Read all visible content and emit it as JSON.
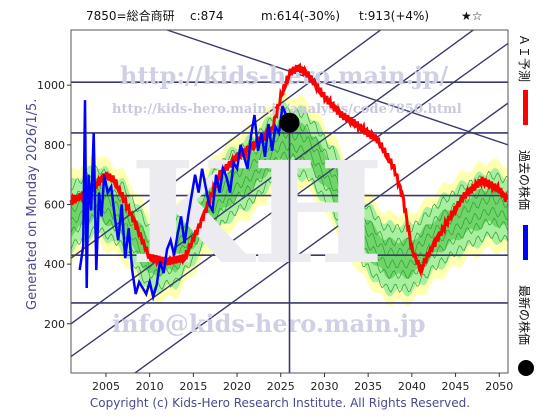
{
  "header": {
    "code_name": "7850=総合商研",
    "current": "c:874",
    "min": "m:614(-30%)",
    "target": "t:913(+4%)",
    "rating": "★☆"
  },
  "side_text": "Generated on Monday 2026/1/5.",
  "copyright": "Copyright (c) Kids-Hero Research Institute. All Rights Reserved.",
  "watermarks": {
    "url_top": "http://kids-hero.main.jp/",
    "url_sub": "http://kids-hero.main.jp/analysis/code7850.html",
    "email": "info@kids-hero.main.jp",
    "logo": "KH"
  },
  "legend": {
    "ai_forecast": "ＡＩ予測",
    "past_price": "過去の株価",
    "latest_price": "最新の株価"
  },
  "colors": {
    "ai_forecast": "#ff0000",
    "past_price": "#0000ff",
    "latest_price": "#000000",
    "band_dark": "#3fbf3f",
    "band_light": "#a8f0a0",
    "band_outer": "#ffffb0",
    "frame": "#3a3a6e"
  },
  "chart_data": {
    "type": "line",
    "x_ticks": [
      2005,
      2010,
      2015,
      2020,
      2025,
      2030,
      2035,
      2040,
      2045,
      2050
    ],
    "y_ticks": [
      200,
      400,
      600,
      800,
      1000
    ],
    "xlim": [
      2001,
      2051
    ],
    "ylim": [
      35,
      1185
    ],
    "latest_point": {
      "year": 2026,
      "value": 874
    },
    "horizontal_levels": [
      270,
      430,
      630,
      840,
      1010
    ],
    "series": [
      {
        "name": "過去の株価",
        "x": [
          2002.0,
          2002.4,
          2002.6,
          2002.8,
          2003.0,
          2003.3,
          2003.6,
          2003.9,
          2004.2,
          2004.5,
          2004.8,
          2005.2,
          2005.6,
          2006.0,
          2006.4,
          2006.8,
          2007.2,
          2007.6,
          2008.0,
          2008.4,
          2008.8,
          2009.2,
          2009.6,
          2010.0,
          2010.4,
          2010.8,
          2011.2,
          2011.6,
          2012.0,
          2012.4,
          2012.8,
          2013.2,
          2013.6,
          2014.0,
          2014.4,
          2014.8,
          2015.2,
          2015.6,
          2016.0,
          2016.4,
          2016.8,
          2017.2,
          2017.6,
          2018.0,
          2018.4,
          2018.8,
          2019.2,
          2019.6,
          2020.0,
          2020.4,
          2020.8,
          2021.2,
          2021.6,
          2022.0,
          2022.4,
          2022.8,
          2023.2,
          2023.6,
          2024.0,
          2024.4,
          2024.8,
          2025.2,
          2025.6
        ],
        "y": [
          380,
          460,
          950,
          320,
          700,
          580,
          840,
          380,
          640,
          560,
          700,
          640,
          660,
          560,
          480,
          600,
          420,
          520,
          380,
          300,
          340,
          320,
          300,
          340,
          290,
          330,
          410,
          370,
          450,
          480,
          430,
          500,
          560,
          470,
          560,
          630,
          700,
          640,
          720,
          660,
          600,
          580,
          700,
          640,
          720,
          690,
          640,
          740,
          720,
          800,
          760,
          720,
          830,
          900,
          780,
          840,
          760,
          870,
          780,
          860,
          840,
          930,
          900
        ]
      },
      {
        "name": "ＡＩ予測",
        "x": [
          2001,
          2003,
          2005,
          2006,
          2008,
          2010,
          2012,
          2014,
          2016,
          2018,
          2020,
          2022,
          2024,
          2025,
          2026,
          2027,
          2028,
          2029,
          2030,
          2032,
          2034,
          2036,
          2038,
          2039,
          2040,
          2041,
          2042,
          2044,
          2046,
          2048,
          2050,
          2051
        ],
        "y": [
          610,
          640,
          700,
          680,
          560,
          420,
          410,
          420,
          550,
          700,
          760,
          800,
          850,
          960,
          1040,
          1060,
          1040,
          1000,
          960,
          900,
          860,
          820,
          720,
          620,
          450,
          380,
          440,
          540,
          630,
          680,
          650,
          610
        ]
      }
    ],
    "band_center": {
      "x": [
        2001,
        2004,
        2007,
        2010,
        2013,
        2016,
        2019,
        2022,
        2025,
        2028,
        2031,
        2034,
        2037,
        2040,
        2043,
        2046,
        2049,
        2051
      ],
      "y": [
        560,
        620,
        560,
        420,
        440,
        560,
        660,
        720,
        820,
        800,
        680,
        520,
        420,
        420,
        500,
        560,
        600,
        580
      ]
    }
  }
}
